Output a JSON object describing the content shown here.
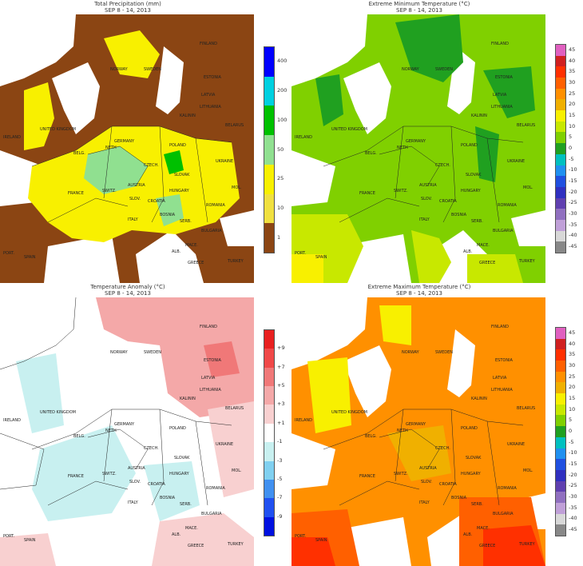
{
  "panels": [
    {
      "id": "precip",
      "title": "Total Precipitation (mm)",
      "dates": "SEP 8 - 14, 2013",
      "legend": [
        "400",
        "200",
        "100",
        "50",
        "25",
        "10",
        "1"
      ],
      "legend_colors": [
        "#0000ff",
        "#00d0e0",
        "#00c000",
        "#90e090",
        "#f8f000",
        "#f0e040",
        "#8b4513"
      ],
      "countries": {
        "finland": "FINLAND",
        "norway": "NORWAY",
        "sweden": "SWEDEN",
        "estonia": "ESTONIA",
        "latvia": "LATVIA",
        "lithuania": "LITHUANIA",
        "kalinin": "KALININ",
        "belarus": "BELARUS",
        "uk": "UNITED KINGDOM",
        "ireland": "IRELAND",
        "belg": "BELG.",
        "neth": "NETH",
        "germany": "GERMANY",
        "poland": "POLAND",
        "czech": "CZECH.",
        "slovak": "SLOVAK",
        "ukraine": "UKRAINE",
        "austria": "AUSTRIA",
        "hungary": "HUNGARY",
        "switz": "SWITZ.",
        "france": "FRANCE",
        "moldova": "MOL.",
        "slov": "SLOV.",
        "croatia": "CROATIA",
        "romania": "ROMANIA",
        "bosnia": "BOSNIA",
        "serbia": "SERB.",
        "italy": "ITALY",
        "bulgaria": "BULGARIA",
        "macedonia": "MACE.",
        "albania": "ALB.",
        "greece": "GREECE",
        "turkey": "TURKEY",
        "spain": "SPAIN",
        "portugal": "PORT."
      }
    },
    {
      "id": "tmin",
      "title": "Extreme Minimum Temperature (°C)",
      "dates": "SEP 8 - 14, 2013",
      "legend": [
        "45",
        "40",
        "35",
        "30",
        "25",
        "20",
        "15",
        "10",
        "5",
        "0",
        "-5",
        "-10",
        "-15",
        "-20",
        "-25",
        "-30",
        "-35",
        "-40",
        "-45"
      ],
      "legend_colors": [
        "#e060c0",
        "#d02020",
        "#ff3000",
        "#ff6000",
        "#ff9000",
        "#f0b000",
        "#f8f000",
        "#c8e800",
        "#80d000",
        "#20a020",
        "#00c0c0",
        "#2090f0",
        "#2050e0",
        "#3030c0",
        "#6040b0",
        "#9070c0",
        "#c0a0d8",
        "#d8d8d8",
        "#888888"
      ],
      "countries": {
        "finland": "FINLAND",
        "norway": "NORWAY",
        "sweden": "SWEDEN",
        "estonia": "ESTONIA",
        "latvia": "LATVIA",
        "lithuania": "LITHUANIA",
        "kalinin": "KALININ",
        "belarus": "BELARUS",
        "uk": "UNITED KINGDOM",
        "ireland": "IRELAND",
        "belg": "BELG.",
        "neth": "NETH",
        "germany": "GERMANY",
        "poland": "POLAND",
        "czech": "CZECH.",
        "slovak": "SLOVAK",
        "ukraine": "UKRAINE",
        "austria": "AUSTRIA",
        "hungary": "HUNGARY",
        "switz": "SWITZ.",
        "france": "FRANCE",
        "moldova": "MOL.",
        "slov": "SLOV.",
        "croatia": "CROATIA",
        "romania": "ROMANIA",
        "bosnia": "BOSNIA",
        "serbia": "SERB.",
        "italy": "ITALY",
        "bulgaria": "BULGARIA",
        "macedonia": "MACE.",
        "albania": "ALB.",
        "greece": "GREECE",
        "turkey": "TURKEY",
        "spain": "SPAIN",
        "portugal": "PORT."
      }
    },
    {
      "id": "anom",
      "title": "Temperature Anomaly (°C)",
      "dates": "SEP 8 - 14, 2013",
      "legend": [
        "+9",
        "+7",
        "+5",
        "+3",
        "+1",
        "-1",
        "-3",
        "-5",
        "-7",
        "-9"
      ],
      "legend_colors": [
        "#e82020",
        "#f04848",
        "#f07878",
        "#f4a8a8",
        "#f8d0d0",
        "#ffffff",
        "#c8f0f0",
        "#80d0f0",
        "#4090f0",
        "#2050f0",
        "#0010e0"
      ],
      "countries": {
        "finland": "FINLAND",
        "norway": "NORWAY",
        "sweden": "SWEDEN",
        "estonia": "ESTONIA",
        "latvia": "LATVIA",
        "lithuania": "LITHUANIA",
        "kalinin": "KALININ",
        "belarus": "BELARUS",
        "uk": "UNITED KINGDOM",
        "ireland": "IRELAND",
        "belg": "BELG.",
        "neth": "NETH",
        "germany": "GERMANY",
        "poland": "POLAND",
        "czech": "CZECH.",
        "slovak": "SLOVAK",
        "ukraine": "UKRAINE",
        "austria": "AUSTRIA",
        "hungary": "HUNGARY",
        "switz": "SWITZ.",
        "france": "FRANCE",
        "moldova": "MOL.",
        "slov": "SLOV.",
        "croatia": "CROATIA",
        "romania": "ROMANIA",
        "bosnia": "BOSNIA",
        "serbia": "SERB.",
        "italy": "ITALY",
        "bulgaria": "BULGARIA",
        "macedonia": "MACE.",
        "albania": "ALB.",
        "greece": "GREECE",
        "turkey": "TURKEY",
        "spain": "SPAIN",
        "portugal": "PORT."
      }
    },
    {
      "id": "tmax",
      "title": "Extreme Maximum Temperature (°C)",
      "dates": "SEP 8 - 14, 2013",
      "legend": [
        "45",
        "40",
        "35",
        "30",
        "25",
        "20",
        "15",
        "10",
        "5",
        "0",
        "-5",
        "-10",
        "-15",
        "-20",
        "-25",
        "-30",
        "-35",
        "-40",
        "-45"
      ],
      "legend_colors": [
        "#e060c0",
        "#d02020",
        "#ff3000",
        "#ff6000",
        "#ff9000",
        "#f0b000",
        "#f8f000",
        "#c8e800",
        "#80d000",
        "#20a020",
        "#00c0c0",
        "#2090f0",
        "#2050e0",
        "#3030c0",
        "#6040b0",
        "#9070c0",
        "#c0a0d8",
        "#d8d8d8",
        "#888888"
      ],
      "countries": {
        "finland": "FINLAND",
        "norway": "NORWAY",
        "sweden": "SWEDEN",
        "estonia": "ESTONIA",
        "latvia": "LATVIA",
        "lithuania": "LITHUANIA",
        "kalinin": "KALININ",
        "belarus": "BELARUS",
        "uk": "UNITED KINGDOM",
        "ireland": "IRELAND",
        "belg": "BELG.",
        "neth": "NETH",
        "germany": "GERMANY",
        "poland": "POLAND",
        "czech": "CZECH.",
        "slovak": "SLOVAK",
        "ukraine": "UKRAINE",
        "austria": "AUSTRIA",
        "hungary": "HUNGARY",
        "switz": "SWITZ.",
        "france": "FRANCE",
        "moldova": "MOL.",
        "slov": "SLOV.",
        "croatia": "CROATIA",
        "romania": "ROMANIA",
        "bosnia": "BOSNIA",
        "serbia": "SERB.",
        "italy": "ITALY",
        "bulgaria": "BULGARIA",
        "macedonia": "MACE.",
        "albania": "ALB.",
        "greece": "GREECE",
        "turkey": "TURKEY",
        "spain": "SPAIN",
        "portugal": "PORT."
      }
    }
  ],
  "colors": {
    "precip_dry": "#8b4513",
    "precip_light": "#f0e040",
    "precip_moderate": "#f8f000",
    "precip_wet": "#90e090",
    "precip_heavy": "#00c000",
    "tmin_base": "#80d000",
    "tmin_cool": "#20a020",
    "tmin_warm": "#c8e800",
    "tmin_warmest": "#f8f000",
    "anom_warm": "#f4a8a8",
    "anom_warmer": "#f07878",
    "anom_cool": "#c8f0f0",
    "anom_neutral": "#ffffff",
    "tmax_base": "#ff9000",
    "tmax_cool": "#f8f000",
    "tmax_mild": "#f0b000",
    "tmax_hot": "#ff6000",
    "tmax_hottest": "#ff3000"
  }
}
